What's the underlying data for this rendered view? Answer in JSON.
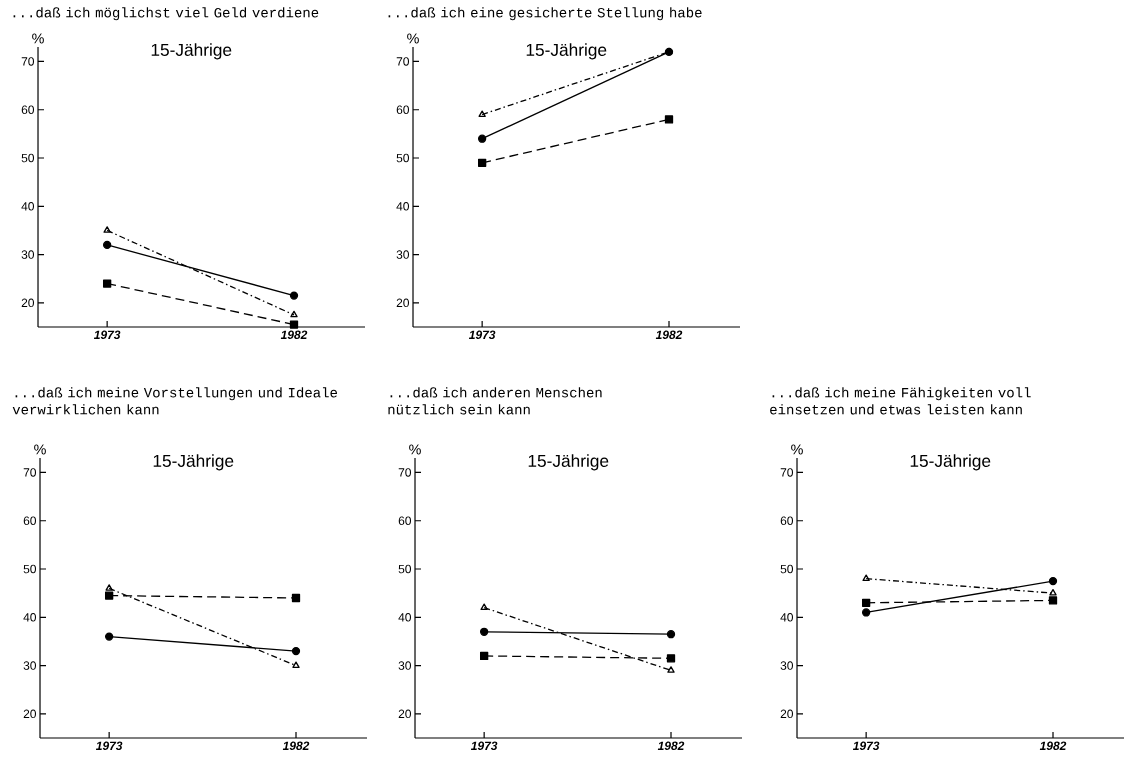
{
  "chart_data": [
    {
      "type": "line",
      "title": "...daß ich möglichst viel Geld verdiene",
      "subtitle": "15-Jährige",
      "ylabel": "%",
      "categories": [
        "1973",
        "1982"
      ],
      "ylim": [
        15,
        73
      ],
      "yticks": [
        20,
        30,
        40,
        50,
        60,
        70
      ],
      "series": [
        {
          "color": "#000000",
          "marker": "circle",
          "line_style": "solid",
          "values": [
            32,
            21.5
          ]
        },
        {
          "color": "#000000",
          "marker": "square",
          "line_style": "dashed",
          "values": [
            24,
            15.5
          ]
        },
        {
          "color": "#000000",
          "marker": "triangle",
          "line_style": "dotted",
          "values": [
            35,
            17.5
          ]
        }
      ]
    },
    {
      "type": "line",
      "title": "...daß ich eine gesicherte Stellung habe",
      "subtitle": "15-Jährige",
      "ylabel": "%",
      "categories": [
        "1973",
        "1982"
      ],
      "ylim": [
        15,
        73
      ],
      "yticks": [
        20,
        30,
        40,
        50,
        60,
        70
      ],
      "series": [
        {
          "color": "#000000",
          "marker": "circle",
          "line_style": "solid",
          "values": [
            54,
            72
          ]
        },
        {
          "color": "#000000",
          "marker": "square",
          "line_style": "dashed",
          "values": [
            49,
            58
          ]
        },
        {
          "color": "#000000",
          "marker": "triangle",
          "line_style": "dotted",
          "values": [
            59,
            72
          ]
        }
      ]
    },
    {
      "type": "line",
      "title": "...daß ich meine Vorstellungen und Ideale verwirklichen kann",
      "subtitle": "15-Jährige",
      "ylabel": "%",
      "categories": [
        "1973",
        "1982"
      ],
      "ylim": [
        15,
        73
      ],
      "yticks": [
        20,
        30,
        40,
        50,
        60,
        70
      ],
      "series": [
        {
          "color": "#000000",
          "marker": "circle",
          "line_style": "solid",
          "values": [
            36,
            33
          ]
        },
        {
          "color": "#000000",
          "marker": "square",
          "line_style": "dashed",
          "values": [
            44.5,
            44
          ]
        },
        {
          "color": "#000000",
          "marker": "triangle",
          "line_style": "dotted",
          "values": [
            46,
            30
          ]
        }
      ]
    },
    {
      "type": "line",
      "title": "...daß ich anderen Menschen nützlich sein kann",
      "subtitle": "15-Jährige",
      "ylabel": "%",
      "categories": [
        "1973",
        "1982"
      ],
      "ylim": [
        15,
        73
      ],
      "yticks": [
        20,
        30,
        40,
        50,
        60,
        70
      ],
      "series": [
        {
          "color": "#000000",
          "marker": "circle",
          "line_style": "solid",
          "values": [
            37,
            36.5
          ]
        },
        {
          "color": "#000000",
          "marker": "square",
          "line_style": "dashed",
          "values": [
            32,
            31.5
          ]
        },
        {
          "color": "#000000",
          "marker": "triangle",
          "line_style": "dotted",
          "values": [
            42,
            29
          ]
        }
      ]
    },
    {
      "type": "line",
      "title": "...daß ich meine Fähigkeiten voll einsetzen und etwas leisten kann",
      "subtitle": "15-Jährige",
      "ylabel": "%",
      "categories": [
        "1973",
        "1982"
      ],
      "ylim": [
        15,
        73
      ],
      "yticks": [
        20,
        30,
        40,
        50,
        60,
        70
      ],
      "series": [
        {
          "color": "#000000",
          "marker": "circle",
          "line_style": "solid",
          "values": [
            41,
            47.5
          ]
        },
        {
          "color": "#000000",
          "marker": "square",
          "line_style": "dashed",
          "values": [
            43,
            43.5
          ]
        },
        {
          "color": "#000000",
          "marker": "triangle",
          "line_style": "dotted",
          "values": [
            48,
            45
          ]
        }
      ]
    }
  ]
}
